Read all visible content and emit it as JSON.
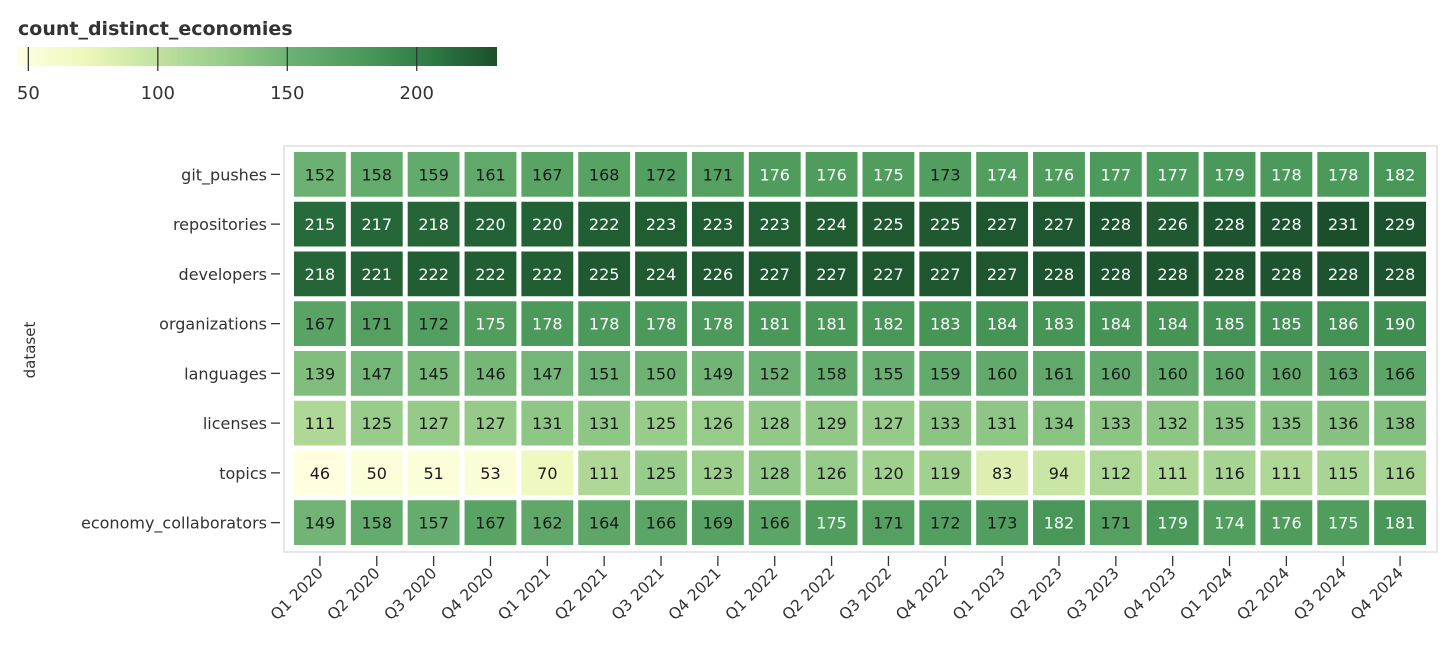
{
  "chart_data": {
    "type": "heatmap",
    "title": "",
    "xlabel": "",
    "ylabel": "dataset",
    "legend": {
      "title": "count_distinct_economies",
      "placement": "top-left",
      "ticks": [
        50,
        100,
        150,
        200
      ],
      "range": [
        46,
        231
      ]
    },
    "colors": [
      "#ffffe0",
      "#edf7bb",
      "#c2e2a0",
      "#98cc8a",
      "#6cb173",
      "#4c9a5b",
      "#2f7c44",
      "#1b4f2c"
    ],
    "x_categories": [
      "Q1 2020",
      "Q2 2020",
      "Q3 2020",
      "Q4 2020",
      "Q1 2021",
      "Q2 2021",
      "Q3 2021",
      "Q4 2021",
      "Q1 2022",
      "Q2 2022",
      "Q3 2022",
      "Q4 2022",
      "Q1 2023",
      "Q2 2023",
      "Q3 2023",
      "Q4 2023",
      "Q1 2024",
      "Q2 2024",
      "Q3 2024",
      "Q4 2024"
    ],
    "y_categories": [
      "git_pushes",
      "repositories",
      "developers",
      "organizations",
      "languages",
      "licenses",
      "topics",
      "economy_collaborators"
    ],
    "values": [
      [
        152,
        158,
        159,
        161,
        167,
        168,
        172,
        171,
        176,
        176,
        175,
        173,
        174,
        176,
        177,
        177,
        179,
        178,
        178,
        182
      ],
      [
        215,
        217,
        218,
        220,
        220,
        222,
        223,
        223,
        223,
        224,
        225,
        225,
        227,
        227,
        228,
        226,
        228,
        228,
        231,
        229
      ],
      [
        218,
        221,
        222,
        222,
        222,
        225,
        224,
        226,
        227,
        227,
        227,
        227,
        227,
        228,
        228,
        228,
        228,
        228,
        228,
        228
      ],
      [
        167,
        171,
        172,
        175,
        178,
        178,
        178,
        178,
        181,
        181,
        182,
        183,
        184,
        183,
        184,
        184,
        185,
        185,
        186,
        190
      ],
      [
        139,
        147,
        145,
        146,
        147,
        151,
        150,
        149,
        152,
        158,
        155,
        159,
        160,
        161,
        160,
        160,
        160,
        160,
        163,
        166
      ],
      [
        111,
        125,
        127,
        127,
        131,
        131,
        125,
        126,
        128,
        129,
        127,
        133,
        131,
        134,
        133,
        132,
        135,
        135,
        136,
        138
      ],
      [
        46,
        50,
        51,
        53,
        70,
        111,
        125,
        123,
        128,
        126,
        120,
        119,
        83,
        94,
        112,
        111,
        116,
        111,
        115,
        116
      ],
      [
        149,
        158,
        157,
        167,
        162,
        164,
        166,
        169,
        166,
        175,
        171,
        172,
        173,
        182,
        171,
        179,
        174,
        176,
        175,
        181
      ]
    ]
  }
}
